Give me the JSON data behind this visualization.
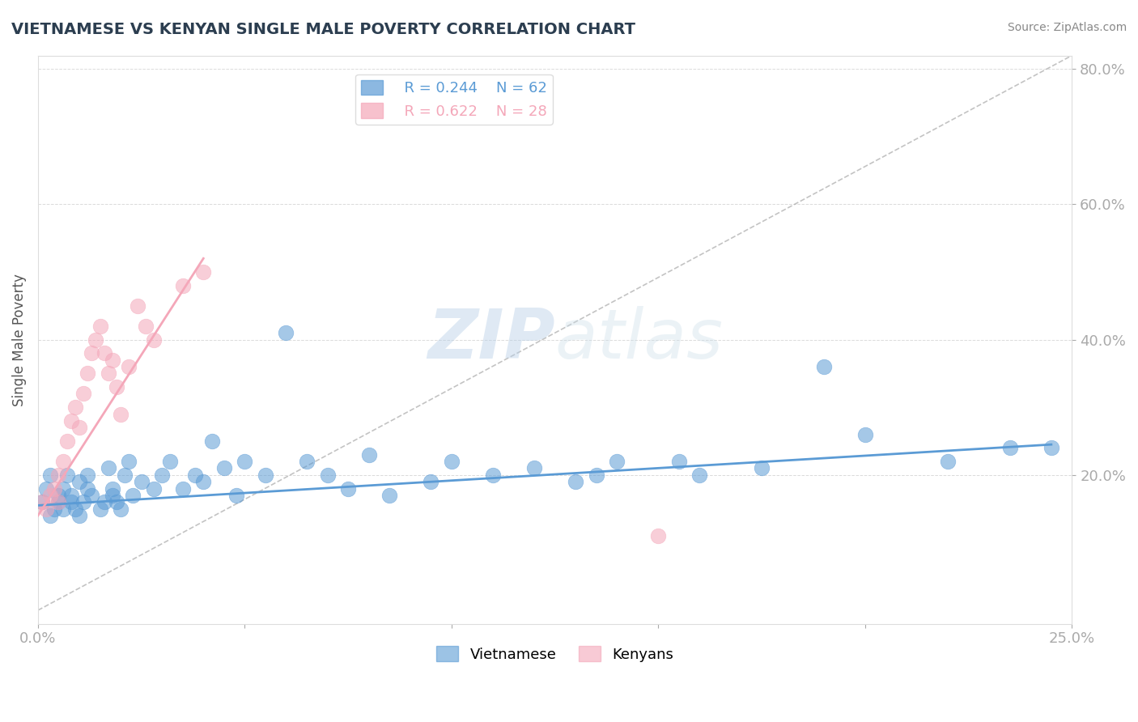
{
  "title": "VIETNAMESE VS KENYAN SINGLE MALE POVERTY CORRELATION CHART",
  "source_text": "Source: ZipAtlas.com",
  "xlabel": "",
  "ylabel": "Single Male Poverty",
  "xlim": [
    0.0,
    0.25
  ],
  "ylim": [
    -0.02,
    0.82
  ],
  "xticks": [
    0.0,
    0.25
  ],
  "xticklabels": [
    "0.0%",
    "25.0%"
  ],
  "ytick_positions": [
    0.2,
    0.4,
    0.6,
    0.8
  ],
  "ytick_labels": [
    "20.0%",
    "40.0%",
    "60.0%",
    "80.0%"
  ],
  "background_color": "#ffffff",
  "grid_color": "#cccccc",
  "title_color": "#2c3e50",
  "source_color": "#888888",
  "axis_color": "#aaaaaa",
  "tick_color": "#5b9bd5",
  "watermark_text": "ZIPatlas",
  "watermark_color_zip": "#aac4e0",
  "watermark_color_atlas": "#c8d8ea",
  "legend_R1": "R = 0.244",
  "legend_N1": "N = 62",
  "legend_R2": "R = 0.622",
  "legend_N2": "N = 28",
  "legend_color1": "#5b9bd5",
  "legend_color2": "#f4a7b9",
  "viet_color": "#5b9bd5",
  "ken_color": "#f4a7b9",
  "viet_scatter_x": [
    0.001,
    0.002,
    0.003,
    0.003,
    0.004,
    0.005,
    0.005,
    0.006,
    0.006,
    0.007,
    0.008,
    0.008,
    0.009,
    0.01,
    0.01,
    0.011,
    0.012,
    0.012,
    0.013,
    0.015,
    0.016,
    0.017,
    0.018,
    0.018,
    0.019,
    0.02,
    0.021,
    0.022,
    0.023,
    0.025,
    0.028,
    0.03,
    0.032,
    0.035,
    0.038,
    0.04,
    0.042,
    0.045,
    0.048,
    0.05,
    0.055,
    0.06,
    0.065,
    0.07,
    0.075,
    0.08,
    0.085,
    0.095,
    0.1,
    0.11,
    0.12,
    0.13,
    0.135,
    0.14,
    0.155,
    0.16,
    0.175,
    0.19,
    0.2,
    0.22,
    0.235,
    0.245
  ],
  "viet_scatter_y": [
    0.16,
    0.18,
    0.14,
    0.2,
    0.15,
    0.17,
    0.16,
    0.15,
    0.18,
    0.2,
    0.16,
    0.17,
    0.15,
    0.14,
    0.19,
    0.16,
    0.18,
    0.2,
    0.17,
    0.15,
    0.16,
    0.21,
    0.17,
    0.18,
    0.16,
    0.15,
    0.2,
    0.22,
    0.17,
    0.19,
    0.18,
    0.2,
    0.22,
    0.18,
    0.2,
    0.19,
    0.25,
    0.21,
    0.17,
    0.22,
    0.2,
    0.41,
    0.22,
    0.2,
    0.18,
    0.23,
    0.17,
    0.19,
    0.22,
    0.2,
    0.21,
    0.19,
    0.2,
    0.22,
    0.22,
    0.2,
    0.21,
    0.36,
    0.26,
    0.22,
    0.24,
    0.24
  ],
  "ken_scatter_x": [
    0.001,
    0.002,
    0.003,
    0.004,
    0.005,
    0.005,
    0.006,
    0.007,
    0.008,
    0.009,
    0.01,
    0.011,
    0.012,
    0.013,
    0.014,
    0.015,
    0.016,
    0.017,
    0.018,
    0.019,
    0.02,
    0.022,
    0.024,
    0.026,
    0.028,
    0.035,
    0.04,
    0.15
  ],
  "ken_scatter_y": [
    0.16,
    0.15,
    0.17,
    0.18,
    0.16,
    0.2,
    0.22,
    0.25,
    0.28,
    0.3,
    0.27,
    0.32,
    0.35,
    0.38,
    0.4,
    0.42,
    0.38,
    0.35,
    0.37,
    0.33,
    0.29,
    0.36,
    0.45,
    0.42,
    0.4,
    0.48,
    0.5,
    0.11
  ],
  "viet_line_x": [
    0.0,
    0.245
  ],
  "viet_line_y": [
    0.155,
    0.245
  ],
  "ken_line_x": [
    0.0,
    0.04
  ],
  "ken_line_y": [
    0.14,
    0.52
  ],
  "ref_line_x": [
    0.0,
    0.25
  ],
  "ref_line_y": [
    0.0,
    0.82
  ]
}
